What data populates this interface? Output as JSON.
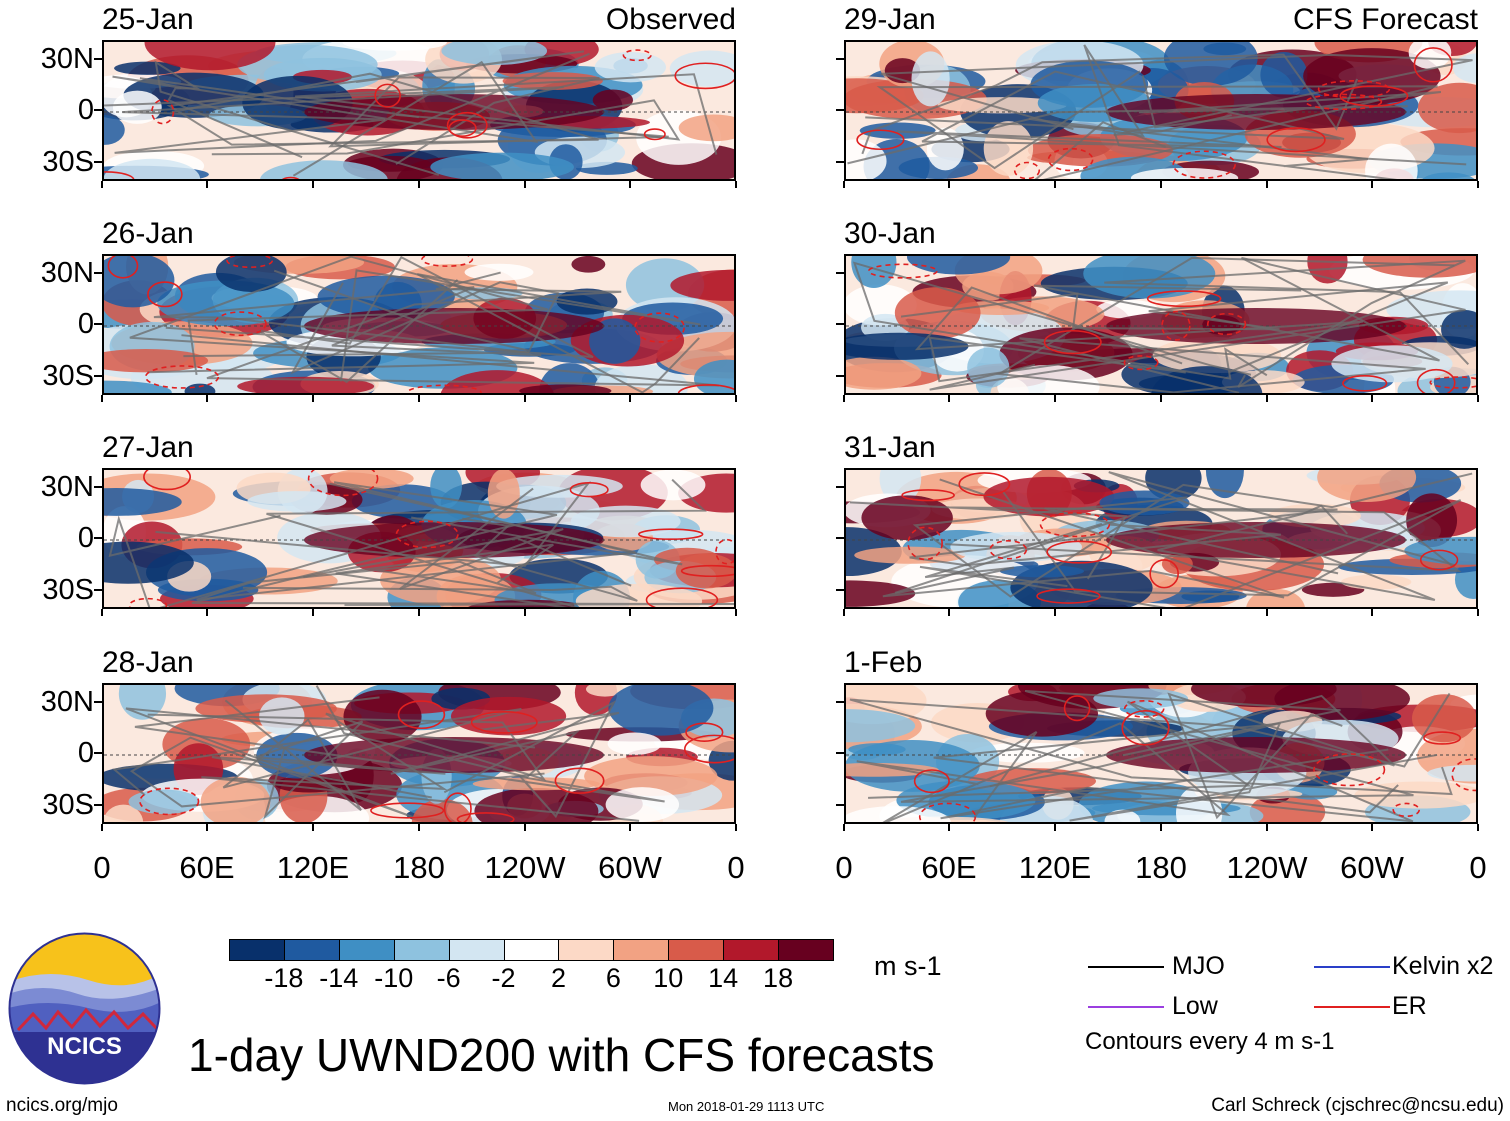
{
  "chart_data": {
    "type": "heatmap",
    "title": "1-day UWND200 with CFS forecasts",
    "variable": "UWND200",
    "units": "m s-1",
    "colorbar": {
      "levels": [
        -18,
        -14,
        -10,
        -6,
        -2,
        2,
        6,
        10,
        14,
        18
      ],
      "level_labels": [
        "-18",
        "-14",
        "-10",
        "-6",
        "-2",
        "2",
        "6",
        "10",
        "14",
        "18"
      ],
      "colors": [
        "#08306b",
        "#1f5aa0",
        "#3f8fc4",
        "#8ec2df",
        "#d3e6f2",
        "#ffffff",
        "#fcd9c6",
        "#f2a283",
        "#d85b4a",
        "#b2182b",
        "#67001f"
      ]
    },
    "lat_ticks": [
      "30N",
      "0",
      "30S"
    ],
    "lon_ticks": [
      "0",
      "60E",
      "120E",
      "180",
      "120W",
      "60W",
      "0"
    ],
    "columns": [
      {
        "source": "Observed",
        "panels": [
          {
            "date": "25-Jan"
          },
          {
            "date": "26-Jan"
          },
          {
            "date": "27-Jan"
          },
          {
            "date": "28-Jan"
          }
        ]
      },
      {
        "source": "CFS Forecast",
        "panels": [
          {
            "date": "29-Jan"
          },
          {
            "date": "30-Jan"
          },
          {
            "date": "31-Jan"
          },
          {
            "date": "1-Feb"
          }
        ]
      }
    ],
    "legend": {
      "items": [
        {
          "name": "MJO",
          "color": "#000000"
        },
        {
          "name": "Kelvin x2",
          "color": "#2a3fc8"
        },
        {
          "name": "Low",
          "color": "#9b3fe0"
        },
        {
          "name": "ER",
          "color": "#e02020"
        }
      ],
      "contour_note": "Contours every 4 m s-1"
    }
  },
  "branding": {
    "logo_text": "NCICS",
    "url": "ncics.org/mjo",
    "timestamp": "Mon 2018-01-29 1113 UTC",
    "author": "Carl Schreck (cjschrec@ncsu.edu)"
  }
}
